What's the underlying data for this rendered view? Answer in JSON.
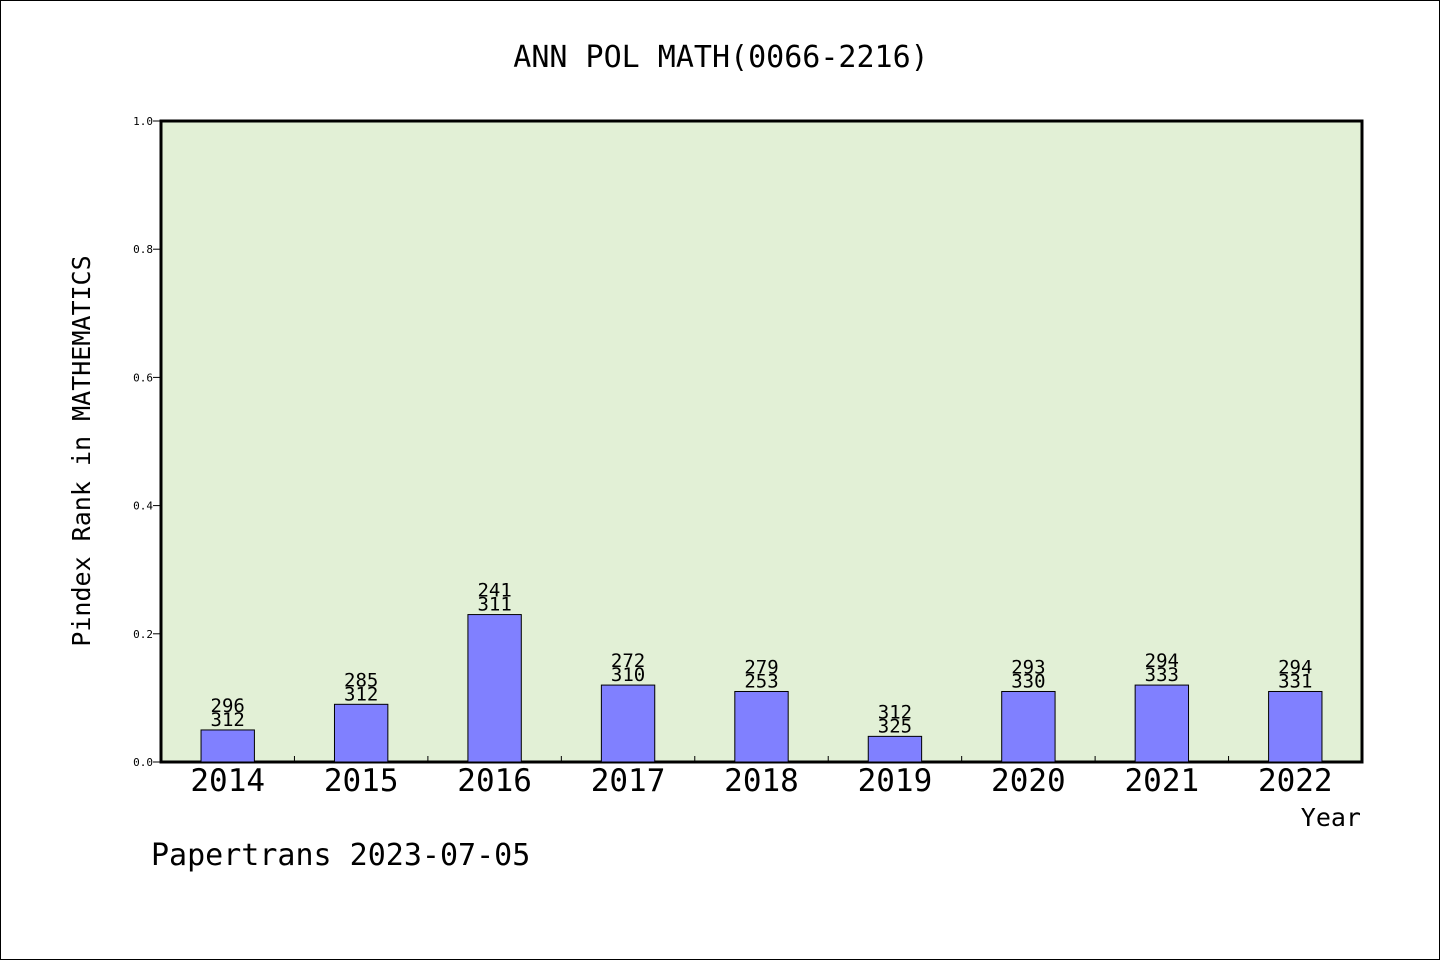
{
  "chart_data": {
    "type": "bar",
    "title": "ANN POL MATH(0066-2216)",
    "xlabel": "Year",
    "ylabel": "Pindex Rank in MATHEMATICS",
    "ylim": [
      0,
      1.0
    ],
    "yticks": [
      "0.0",
      "0.2",
      "0.4",
      "0.6",
      "0.8",
      "1.0"
    ],
    "categories": [
      "2014",
      "2015",
      "2016",
      "2017",
      "2018",
      "2019",
      "2020",
      "2021",
      "2022"
    ],
    "values": [
      0.05,
      0.09,
      0.23,
      0.12,
      0.11,
      0.04,
      0.11,
      0.12,
      0.11
    ],
    "labels_top": [
      "296",
      "285",
      "241",
      "272",
      "279",
      "312",
      "293",
      "294",
      "294"
    ],
    "labels_bottom": [
      "312",
      "312",
      "311",
      "310",
      "253",
      "325",
      "330",
      "333",
      "331"
    ],
    "plot_background": "#e2f0d6",
    "bar_color": "#8080ff",
    "grid": false,
    "footer": "Papertrans 2023-07-05"
  }
}
